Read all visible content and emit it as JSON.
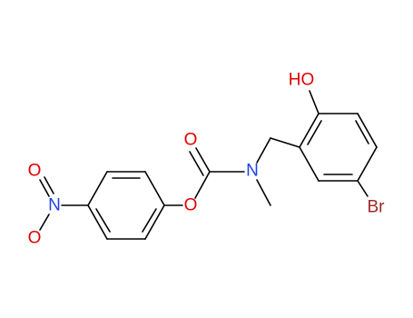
{
  "atoms": {
    "hydroxyl": "HO",
    "carbonyl_oxygen": "O",
    "amine_nitrogen": "N",
    "ester_oxygen": "O",
    "bromine": "Br",
    "nitro_nitrogen": "N",
    "nitro_oxygen_top": "O",
    "nitro_oxygen_bottom": "O"
  }
}
